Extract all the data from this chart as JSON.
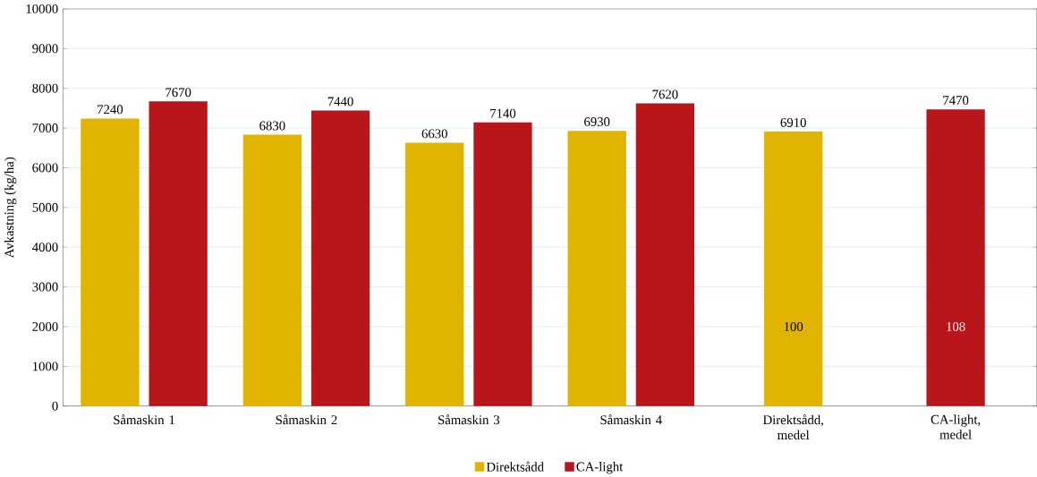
{
  "chart_data": {
    "type": "bar",
    "ylabel": "Avkastning (kg/ha)",
    "categories": [
      "Såmaskin 1",
      "Såmaskin 2",
      "Såmaskin 3",
      "Såmaskin 4",
      "Direktsådd, medel",
      "CA-light, medel"
    ],
    "series": [
      {
        "name": "Direktsådd",
        "color": "#e0b400",
        "values": [
          7240,
          6830,
          6630,
          6930,
          6910,
          null
        ]
      },
      {
        "name": "CA-light",
        "color": "#b8161a",
        "values": [
          7670,
          7440,
          7140,
          7620,
          null,
          7470
        ]
      }
    ],
    "ylim": [
      0,
      10000
    ],
    "yticks": [
      0,
      1000,
      2000,
      3000,
      4000,
      5000,
      6000,
      7000,
      8000,
      9000,
      10000
    ],
    "grid": "y",
    "legend": "bottom",
    "data_labels": true,
    "annotations": [
      "100",
      "108"
    ]
  }
}
